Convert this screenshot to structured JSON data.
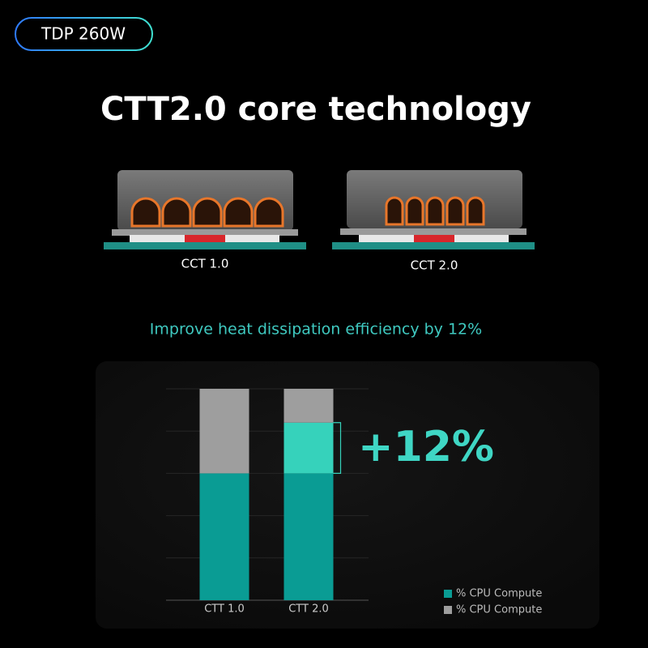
{
  "badge": "TDP 260W",
  "title": "CTT2.0 core technology",
  "diagrams": [
    {
      "label": "CCT 1.0"
    },
    {
      "label": "CCT 2.0"
    }
  ],
  "subtitle": "Improve heat dissipation efficiency by 12%",
  "chart_data": {
    "type": "stacked_bar",
    "categories": [
      "CTT 1.0",
      "CTT 2.0"
    ],
    "series": [
      {
        "name": "% CPU Compute",
        "color": "#0a9c94",
        "values": [
          60,
          60
        ]
      },
      {
        "color": "#36d2bb",
        "values": [
          null,
          24
        ]
      },
      {
        "name": "% CPU Compute",
        "color": "#9e9e9e",
        "values": [
          40,
          16
        ]
      }
    ],
    "annotation": "+12%",
    "ylim": [
      0,
      100
    ],
    "yticks": [
      0,
      20,
      40,
      60,
      80,
      100
    ],
    "grid": true
  }
}
